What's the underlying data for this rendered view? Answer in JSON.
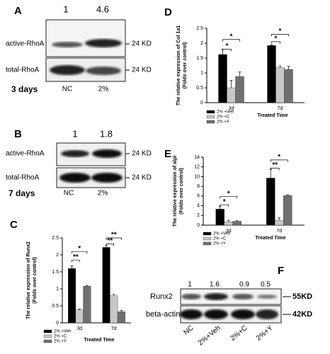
{
  "blots": [
    {
      "panel": "A",
      "ratios": [
        1,
        4.6
      ],
      "rows": [
        "active-RhoA",
        "total-RhoA"
      ],
      "sizes": [
        "24 KD",
        "24 KD"
      ],
      "lanes": [
        "NC",
        "2%"
      ],
      "duration": "3 days"
    },
    {
      "panel": "B",
      "ratios": [
        1,
        1.8
      ],
      "rows": [
        "active-RhoA",
        "total-RhoA"
      ],
      "sizes": [
        "24 KD",
        "24 KD"
      ],
      "lanes": [
        "NC",
        "2%"
      ],
      "duration": "7 days"
    },
    {
      "panel": "F",
      "ratios": [
        1,
        1.6,
        0.9,
        0.5
      ],
      "rows": [
        "Runx2",
        "beta-actin"
      ],
      "sizes": [
        "55KD",
        "42KD"
      ],
      "lanes": [
        "NC",
        "2%+Veh",
        "2%+C",
        "2%+Y"
      ]
    }
  ],
  "chart_data": [
    {
      "type": "bar",
      "panel": "C",
      "y_label": [
        "The relative expression of Runx2",
        "(Folds over control)"
      ],
      "x_label": "Treated Time",
      "categories": [
        "3d",
        "7d"
      ],
      "series": [
        {
          "name": "2% +Veh",
          "color": "#000000",
          "values": [
            1.6,
            2.22
          ],
          "errors": [
            0.08,
            0.06
          ]
        },
        {
          "name": "2% +C",
          "color": "#c8c8c8",
          "values": [
            0.38,
            0.8
          ],
          "errors": [
            0.03,
            0.04
          ]
        },
        {
          "name": "2% +Y",
          "color": "#707070",
          "values": [
            1.08,
            0.33
          ],
          "errors": [
            0.02,
            0.04
          ]
        }
      ],
      "ylim": [
        0,
        2.5
      ],
      "yticks": [
        0,
        0.5,
        1,
        1.5,
        2,
        2.5
      ],
      "annotations": [
        "**",
        "*",
        "**",
        "**"
      ]
    },
    {
      "type": "bar",
      "panel": "D",
      "y_label": [
        "The relative expression of Col 1a1",
        "(Folds over control)"
      ],
      "x_label": "Treated Time",
      "categories": [
        "3d",
        "7d"
      ],
      "series": [
        {
          "name": "2% +Veh",
          "color": "#000000",
          "values": [
            1.62,
            1.92
          ],
          "errors": [
            0.18,
            0.02
          ]
        },
        {
          "name": "2% +C",
          "color": "#c8c8c8",
          "values": [
            0.5,
            1.18
          ],
          "errors": [
            0.25,
            0.06
          ]
        },
        {
          "name": "2% +Y",
          "color": "#707070",
          "values": [
            0.88,
            1.12
          ],
          "errors": [
            0.15,
            0.1
          ]
        }
      ],
      "ylim": [
        0,
        2.5
      ],
      "yticks": [
        0,
        0.5,
        1,
        1.5,
        2,
        2.5
      ],
      "annotations": [
        "*",
        "*",
        "*",
        "*"
      ]
    },
    {
      "type": "bar",
      "panel": "E",
      "y_label": [
        "The relative expression of alpl",
        "(Folds over control)"
      ],
      "x_label": "Treated Time",
      "categories": [
        "3d",
        "7d"
      ],
      "series": [
        {
          "name": "2% +Veh",
          "color": "#000000",
          "values": [
            3.3,
            9.7
          ],
          "errors": [
            0.6,
            1.8
          ]
        },
        {
          "name": "2% +C",
          "color": "#c8c8c8",
          "values": [
            0.7,
            1.0
          ],
          "errors": [
            0.3,
            0.5
          ]
        },
        {
          "name": "2% +Y",
          "color": "#707070",
          "values": [
            0.8,
            6.1
          ],
          "errors": [
            0.1,
            0.15
          ]
        }
      ],
      "ylim": [
        0,
        14
      ],
      "yticks": [
        0,
        2,
        4,
        6,
        8,
        10,
        12,
        14
      ],
      "annotations": [
        "*",
        "*",
        "**",
        "*"
      ]
    }
  ]
}
